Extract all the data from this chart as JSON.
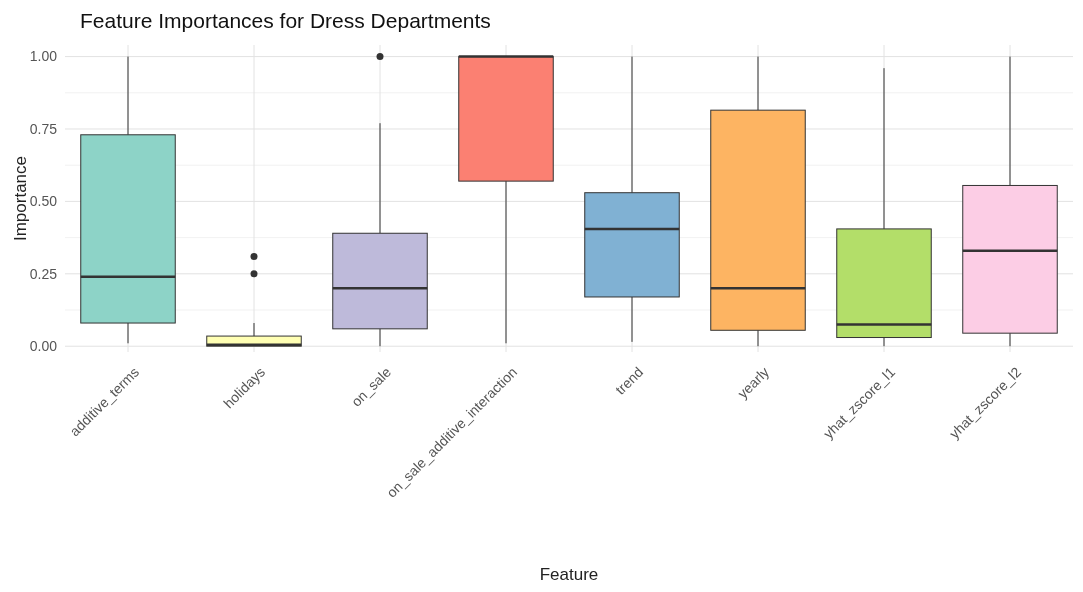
{
  "chart_data": {
    "type": "box",
    "title": "Feature Importances for Dress Departments",
    "xlabel": "Feature",
    "ylabel": "Importance",
    "categories": [
      "additive_terms",
      "holidays",
      "on_sale",
      "on_sale_additive_interaction",
      "trend",
      "yearly",
      "yhat_zscore_l1",
      "yhat_zscore_l2"
    ],
    "colors": [
      "#8dd3c7",
      "#ffffb3",
      "#bebada",
      "#fb8072",
      "#80b1d3",
      "#fdb462",
      "#b3de69",
      "#fccde5"
    ],
    "boxes": [
      {
        "low": 0.01,
        "q1": 0.08,
        "median": 0.24,
        "q3": 0.73,
        "high": 1.0
      },
      {
        "low": 0.0,
        "q1": 0.0,
        "median": 0.005,
        "q3": 0.035,
        "high": 0.08,
        "outliers": [
          0.25,
          0.31
        ]
      },
      {
        "low": 0.0,
        "q1": 0.06,
        "median": 0.2,
        "q3": 0.39,
        "high": 0.77,
        "outliers": [
          1.0
        ]
      },
      {
        "low": 0.01,
        "q1": 0.57,
        "median": 1.0,
        "q3": 1.0,
        "high": 1.0
      },
      {
        "low": 0.015,
        "q1": 0.17,
        "median": 0.405,
        "q3": 0.53,
        "high": 1.0
      },
      {
        "low": 0.0,
        "q1": 0.055,
        "median": 0.2,
        "q3": 0.815,
        "high": 1.0
      },
      {
        "low": 0.0,
        "q1": 0.03,
        "median": 0.075,
        "q3": 0.405,
        "high": 0.96
      },
      {
        "low": 0.0,
        "q1": 0.045,
        "median": 0.33,
        "q3": 0.555,
        "high": 1.0
      }
    ],
    "ylim": [
      -0.02,
      1.04
    ],
    "yticks": [
      {
        "value": 0,
        "label": "0.00"
      },
      {
        "value": 0.25,
        "label": "0.25"
      },
      {
        "value": 0.5,
        "label": "0.50"
      },
      {
        "value": 0.75,
        "label": "0.75"
      },
      {
        "value": 1,
        "label": "1.00"
      }
    ],
    "grid": true
  }
}
